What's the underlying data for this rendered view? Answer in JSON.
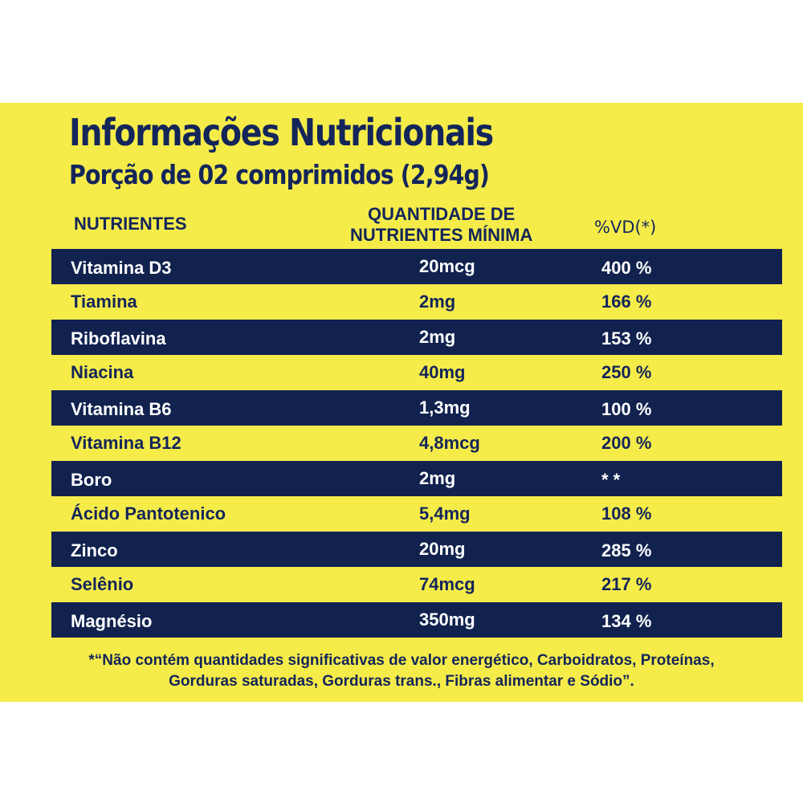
{
  "title": "Informações Nutricionais",
  "subtitle": "Porção de 02 comprimidos (2,94g)",
  "headers": {
    "nutrientes": "NUTRIENTES",
    "quantidade_line1": "QUANTIDADE DE",
    "quantidade_line2": "NUTRIENTES MÍNIMA",
    "vd": "%VD(*)"
  },
  "rows": [
    {
      "nutriente": "Vitamina D3",
      "quantidade": "20mcg",
      "vd": "400 %"
    },
    {
      "nutriente": "Tiamina",
      "quantidade": "2mg",
      "vd": "166 %"
    },
    {
      "nutriente": "Riboflavina",
      "quantidade": "2mg",
      "vd": "153 %"
    },
    {
      "nutriente": "Niacina",
      "quantidade": "40mg",
      "vd": "250 %"
    },
    {
      "nutriente": "Vitamina B6",
      "quantidade": "1,3mg",
      "vd": "100 %"
    },
    {
      "nutriente": "Vitamina B12",
      "quantidade": "4,8mcg",
      "vd": "200 %"
    },
    {
      "nutriente": "Boro",
      "quantidade": "2mg",
      "vd": "* *"
    },
    {
      "nutriente": "Ácido Pantotenico",
      "quantidade": "5,4mg",
      "vd": "108 %"
    },
    {
      "nutriente": "Zinco",
      "quantidade": "20mg",
      "vd": "285 %"
    },
    {
      "nutriente": "Selênio",
      "quantidade": "74mcg",
      "vd": "217 %"
    },
    {
      "nutriente": "Magnésio",
      "quantidade": "350mg",
      "vd": "134 %"
    }
  ],
  "footnote": {
    "line1": "*“Não contém quantidades significativas de valor energético, Carboidratos, Proteínas,",
    "line2": "Gorduras saturadas, Gorduras trans., Fibras alimentar e Sódio”."
  },
  "colors": {
    "background": "#f5ec4a",
    "dark_row": "#11224f",
    "text": "#14255a"
  }
}
